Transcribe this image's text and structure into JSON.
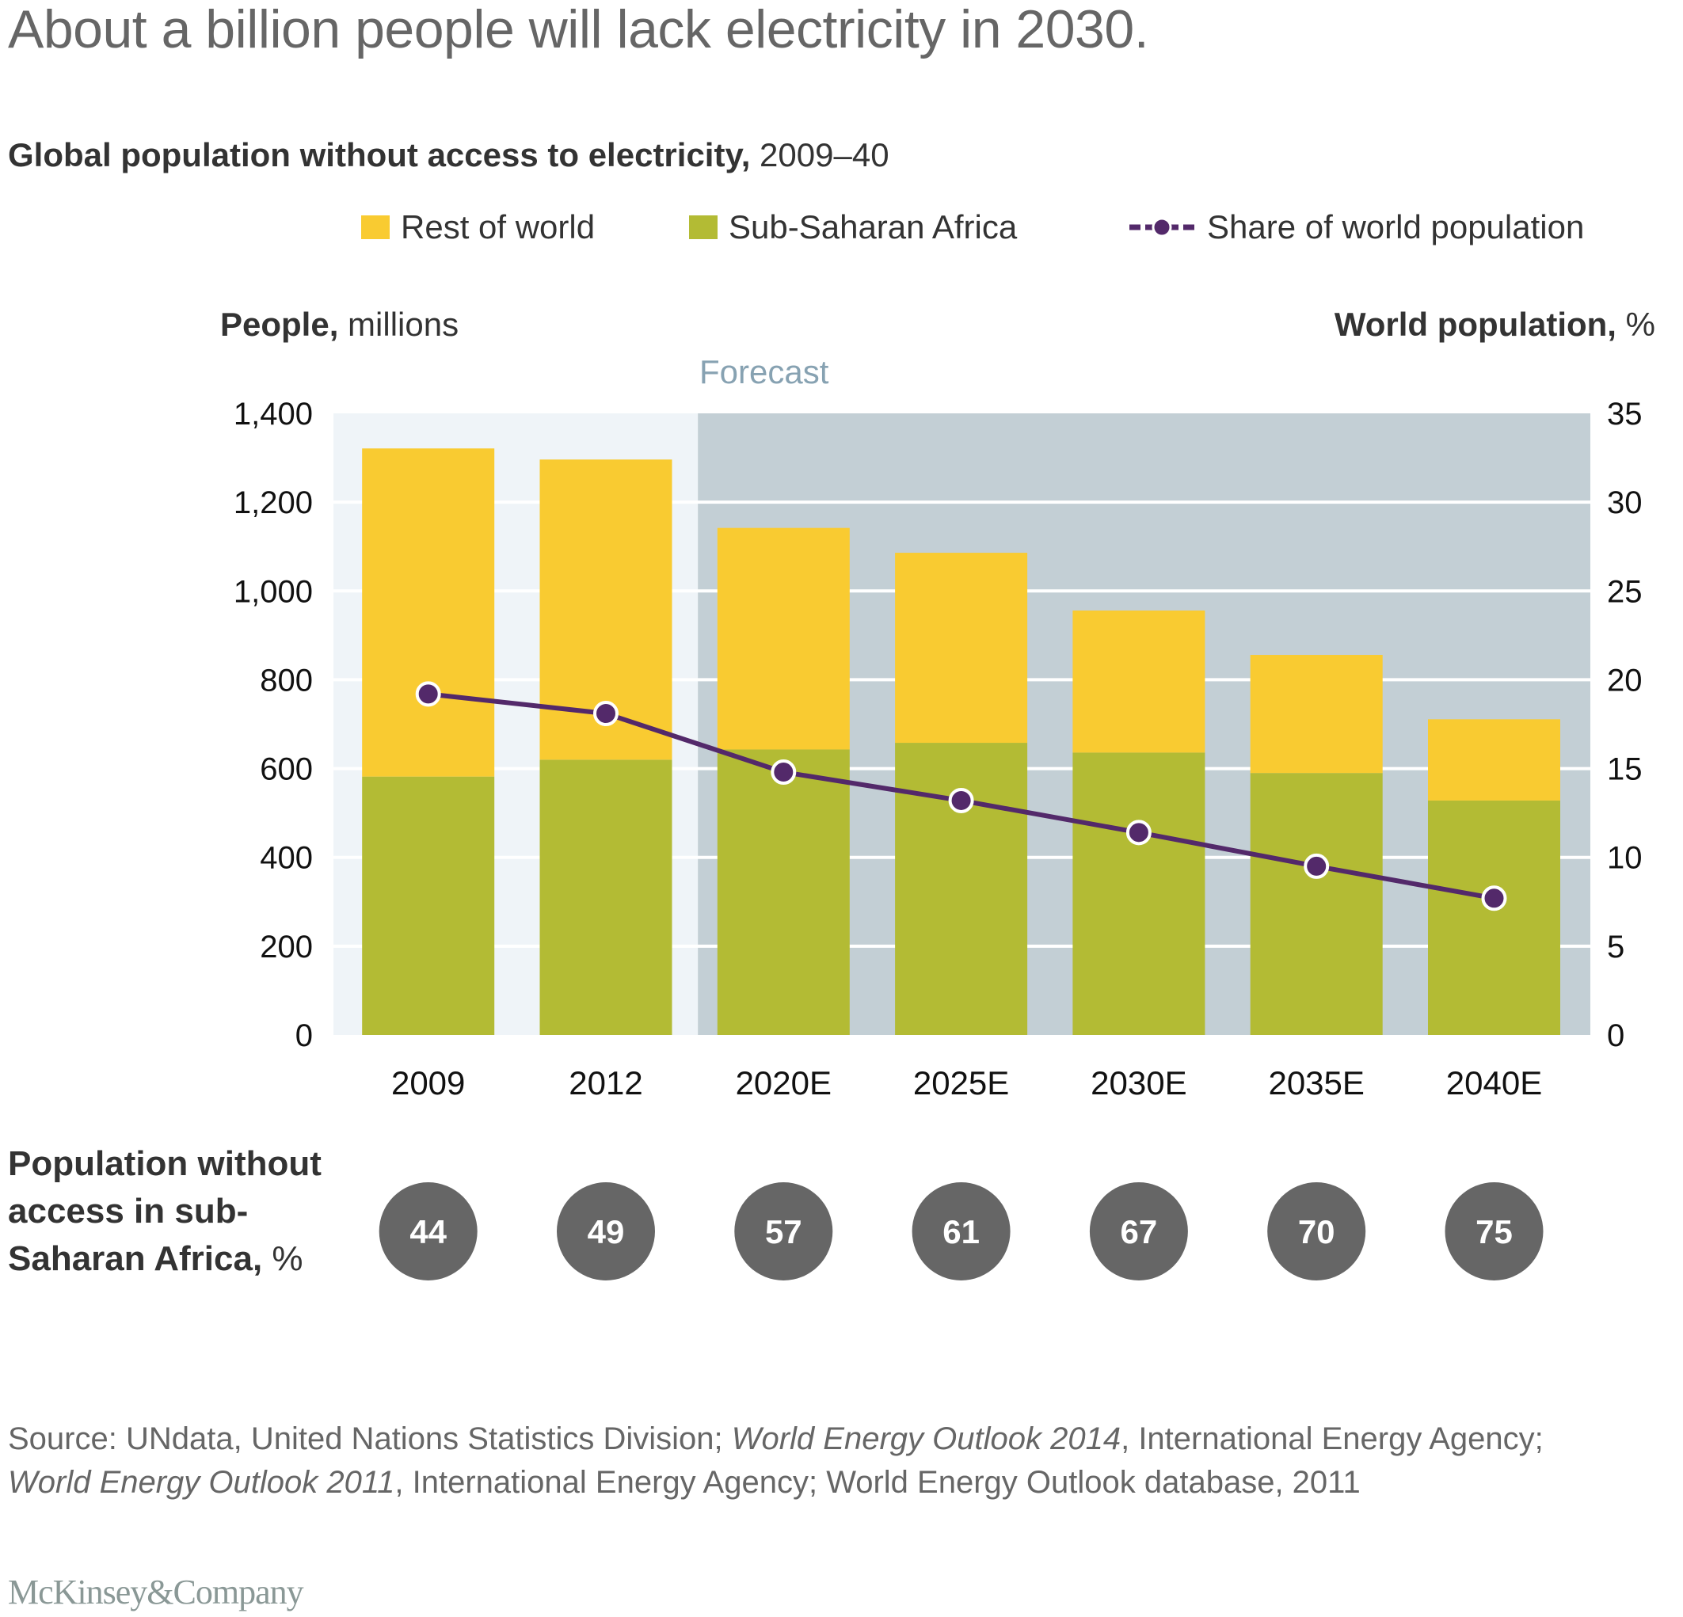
{
  "title": "About a billion people will lack electricity in 2030.",
  "subtitle": {
    "bold": "Global population without access to electricity,",
    "normal": " 2009–40"
  },
  "legend": [
    {
      "label": "Rest of world",
      "color": "#F9CB31",
      "type": "swatch"
    },
    {
      "label": "Sub-Saharan Africa",
      "color": "#B3BB34",
      "type": "swatch"
    },
    {
      "label": "Share of world population",
      "color": "#53296A",
      "type": "line-marker"
    }
  ],
  "axis_titles": {
    "left_bold": "People,",
    "left_normal": " millions",
    "right_bold": "World population,",
    "right_normal": " %"
  },
  "forecast_label": "Forecast",
  "colors": {
    "rest_of_world": "#F9CB31",
    "sub_saharan_africa": "#B3BB34",
    "share_line": "#53296A",
    "historical_bg": "#EFF4F8",
    "forecast_bg": "#C3CFD5",
    "badge": "#666666"
  },
  "chart_data": {
    "type": "bar",
    "stacked": true,
    "title": "Global population without access to electricity, 2009–40",
    "categories": [
      "2009",
      "2012",
      "2020E",
      "2025E",
      "2030E",
      "2035E",
      "2040E"
    ],
    "forecast_start_index": 2,
    "series": [
      {
        "name": "Sub-Saharan Africa",
        "axis": "left",
        "values": [
          582,
          620,
          643,
          658,
          636,
          590,
          528
        ]
      },
      {
        "name": "Rest of world",
        "axis": "left",
        "values": [
          739,
          676,
          499,
          428,
          320,
          266,
          183
        ]
      },
      {
        "name": "Share of world population",
        "type": "line",
        "axis": "right",
        "values": [
          19.2,
          18.1,
          14.8,
          13.2,
          11.4,
          9.5,
          7.7
        ]
      }
    ],
    "totals": [
      1321,
      1296,
      1142,
      1086,
      956,
      856,
      711
    ],
    "ylabel": "People, millions",
    "ylim": [
      0,
      1400
    ],
    "yticks": [
      "0",
      "200",
      "400",
      "600",
      "800",
      "1,000",
      "1,200",
      "1,400"
    ],
    "ytick_values": [
      0,
      200,
      400,
      600,
      800,
      1000,
      1200,
      1400
    ],
    "y2label": "World population, %",
    "y2lim": [
      0,
      35
    ],
    "y2ticks": [
      "0",
      "5",
      "10",
      "15",
      "20",
      "25",
      "30",
      "35"
    ],
    "y2tick_values": [
      0,
      5,
      10,
      15,
      20,
      25,
      30,
      35
    ],
    "grid": true,
    "legend_position": "top-right"
  },
  "annotation": {
    "label_bold": "Population without access in sub-Saharan Africa,",
    "label_unit": " %",
    "values": [
      "44",
      "49",
      "57",
      "61",
      "67",
      "70",
      "75"
    ]
  },
  "source": {
    "parts": [
      {
        "text": "Source: UNdata, United Nations Statistics Division; ",
        "italic": false
      },
      {
        "text": "World Energy Outlook 2014",
        "italic": true
      },
      {
        "text": ", International Energy Agency; ",
        "italic": false
      },
      {
        "text": "World Energy Outlook 2011",
        "italic": true
      },
      {
        "text": ", International Energy Agency; World Energy Outlook database, 2011",
        "italic": false
      }
    ]
  },
  "logo": "McKinsey&Company"
}
